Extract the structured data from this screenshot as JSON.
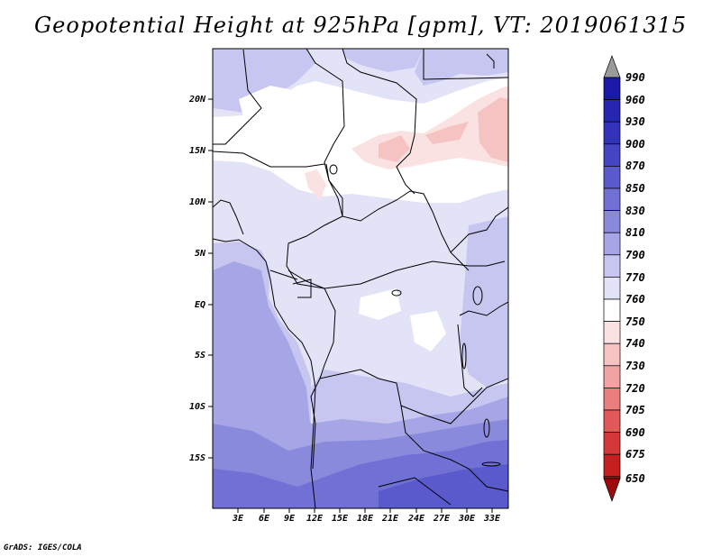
{
  "title": "Geopotential Height at 925hPa [gpm], VT: 2019061315",
  "credit": "GrADS: IGES/COLA",
  "map": {
    "x_ticks": [
      "3E",
      "6E",
      "9E",
      "12E",
      "15E",
      "18E",
      "21E",
      "24E",
      "27E",
      "30E",
      "33E"
    ],
    "y_ticks": [
      "20N",
      "15N",
      "10N",
      "5N",
      "EQ",
      "5S",
      "10S",
      "15S"
    ]
  },
  "colorbar": {
    "labels": [
      "990",
      "960",
      "930",
      "900",
      "870",
      "850",
      "830",
      "810",
      "790",
      "770",
      "760",
      "750",
      "740",
      "730",
      "720",
      "705",
      "690",
      "675",
      "650"
    ],
    "colors": [
      "#9a9a9a",
      "#1a1aa6",
      "#2626b0",
      "#3333ba",
      "#4545c4",
      "#5a5acd",
      "#7070d5",
      "#8a8add",
      "#a6a6e6",
      "#c6c6f0",
      "#e3e3f8",
      "#ffffff",
      "#fbe2e2",
      "#f6c3c3",
      "#f1a2a2",
      "#ea7e7e",
      "#e05a5a",
      "#d43838",
      "#c52020",
      "#b31212",
      "#9e0a0a"
    ]
  },
  "chart_data": {
    "type": "heatmap",
    "title": "Geopotential Height at 925hPa [gpm], VT: 2019061315",
    "variable": "Geopotential Height",
    "level": "925hPa",
    "units": "gpm",
    "valid_time": "2019061315",
    "xlabel": "",
    "ylabel": "",
    "x_ticks": [
      "3E",
      "6E",
      "9E",
      "12E",
      "15E",
      "18E",
      "21E",
      "24E",
      "27E",
      "30E",
      "33E"
    ],
    "y_ticks": [
      "20N",
      "15N",
      "10N",
      "5N",
      "EQ",
      "5S",
      "10S",
      "15S"
    ],
    "color_levels": [
      "990",
      "960",
      "930",
      "900",
      "870",
      "850",
      "830",
      "810",
      "790",
      "770",
      "760",
      "750",
      "740",
      "730",
      "720",
      "705",
      "690",
      "675",
      "650"
    ]
  }
}
